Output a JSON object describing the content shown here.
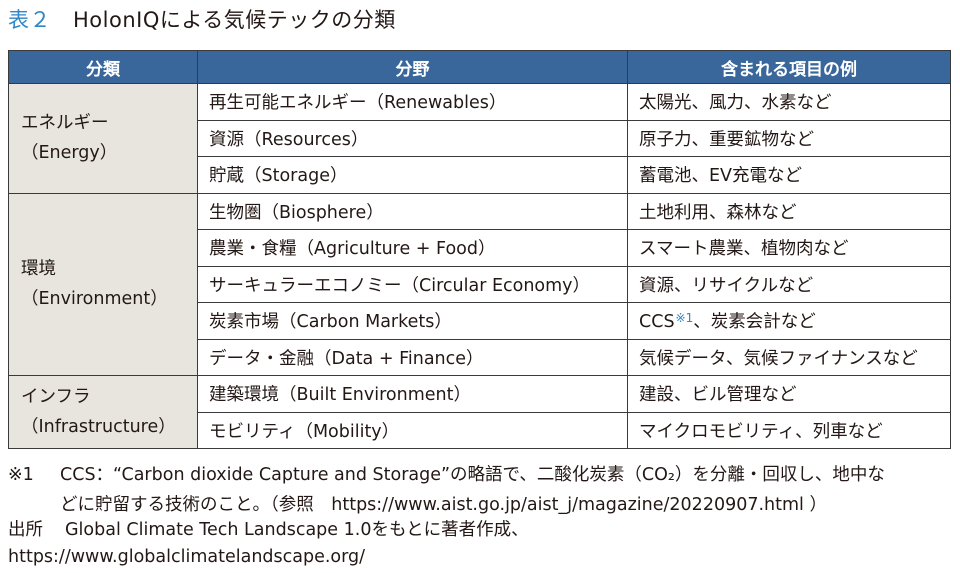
{
  "title": {
    "number": "表２",
    "text": "HolonIQによる気候テックの分類"
  },
  "table": {
    "headers": [
      "分類",
      "分野",
      "含まれる項目の例"
    ],
    "groups": [
      {
        "category": [
          "エネルギー",
          "（Energy）"
        ],
        "rows": [
          {
            "field": "再生可能エネルギー（Renewables）",
            "examples": "太陽光、風力、水素など"
          },
          {
            "field": "資源（Resources）",
            "examples": "原子力、重要鉱物など"
          },
          {
            "field": "貯蔵（Storage）",
            "examples": "蓄電池、EV充電など"
          }
        ]
      },
      {
        "category": [
          "環境",
          "（Environment）"
        ],
        "rows": [
          {
            "field": "生物圏（Biosphere）",
            "examples": "土地利用、森林など"
          },
          {
            "field": "農業・食糧（Agriculture + Food）",
            "examples": "スマート農業、植物肉など"
          },
          {
            "field": "サーキュラーエコノミー（Circular Economy）",
            "examples": "資源、リサイクルなど"
          },
          {
            "field": "炭素市場（Carbon Markets）",
            "examples_pre": "CCS",
            "examples_note": "※1",
            "examples_post": "、炭素会計など"
          },
          {
            "field": "データ・金融（Data + Finance）",
            "examples": "気候データ、気候ファイナンスなど"
          }
        ]
      },
      {
        "category": [
          "インフラ",
          "（Infrastructure）"
        ],
        "rows": [
          {
            "field": "建築環境（Built Environment）",
            "examples": "建設、ビル管理など"
          },
          {
            "field": "モビリティ（Mobility）",
            "examples": "マイクロモビリティ、列車など"
          }
        ]
      }
    ]
  },
  "footnote": {
    "mark": "※1",
    "line1": "CCS：“Carbon dioxide Capture and Storage”の略語で、二酸化炭素（CO₂）を分離・回収し、地中な",
    "line2": "どに貯留する技術のこと。（参照　https://www.aist.go.jp/aist_j/magazine/20220907.html ）"
  },
  "source": {
    "label": "出所",
    "line1": "Global Climate Tech Landscape 1.0をもとに著者作成、",
    "line2": "https://www.globalclimatelandscape.org/"
  }
}
